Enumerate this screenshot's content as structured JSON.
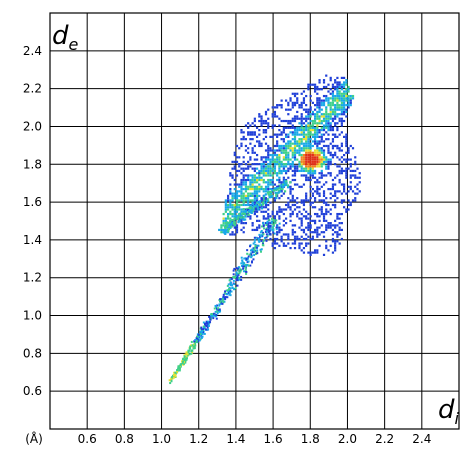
{
  "chart_data": {
    "type": "heatmap",
    "title": "",
    "subtitle": "",
    "unit_label": "(Å)",
    "xlabel": {
      "symbol": "d",
      "subscript": "i"
    },
    "ylabel": {
      "symbol": "d",
      "subscript": "e"
    },
    "xlim": [
      0.4,
      2.6
    ],
    "ylim": [
      0.4,
      2.6
    ],
    "x_ticks": [
      "0.6",
      "0.8",
      "1.0",
      "1.2",
      "1.4",
      "1.6",
      "1.8",
      "2.0",
      "2.2",
      "2.4"
    ],
    "y_ticks": [
      "0.6",
      "0.8",
      "1.0",
      "1.2",
      "1.4",
      "1.6",
      "1.8",
      "2.0",
      "2.2",
      "2.4"
    ],
    "grid": true,
    "colors": {
      "low": "#1f3fd8",
      "mid_low": "#18a8e8",
      "mid": "#3ed08a",
      "mid_high": "#e8e030",
      "high": "#e03018",
      "grid": "#000000"
    },
    "density_regions": [
      {
        "region": "main cloud",
        "x_range": [
          1.3,
          2.08
        ],
        "y_range": [
          1.3,
          2.28
        ],
        "peak": [
          1.8,
          1.82
        ]
      },
      {
        "region": "spike",
        "x_range": [
          1.04,
          1.62
        ],
        "y_range": [
          0.64,
          1.5
        ],
        "peak": [
          1.2,
          0.84
        ]
      }
    ]
  }
}
